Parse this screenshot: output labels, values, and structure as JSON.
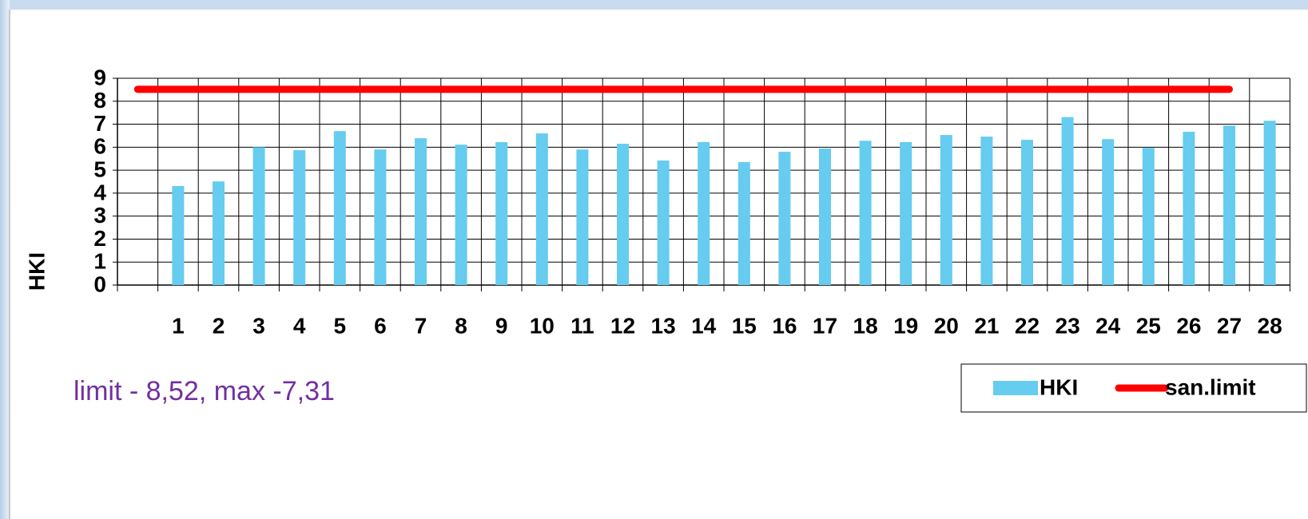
{
  "chart_data": {
    "type": "bar",
    "categories": [
      null,
      "1",
      "2",
      "3",
      "4",
      "5",
      "6",
      "7",
      "8",
      "9",
      "10",
      "11",
      "12",
      "13",
      "14",
      "15",
      "16",
      "17",
      "18",
      "19",
      "20",
      "21",
      "22",
      "23",
      "24",
      "25",
      "26",
      "27",
      "28"
    ],
    "series": [
      {
        "name": "HKI",
        "type": "bar",
        "color": "#66ccf0",
        "values": [
          null,
          4.31,
          4.51,
          6.0,
          5.87,
          6.7,
          5.9,
          6.39,
          6.11,
          6.22,
          6.6,
          5.9,
          6.15,
          5.42,
          6.22,
          5.35,
          5.8,
          5.94,
          6.28,
          6.22,
          6.53,
          6.46,
          6.32,
          7.31,
          6.35,
          5.97,
          6.67,
          6.94,
          7.15
        ]
      },
      {
        "name": "san.limit",
        "type": "line",
        "color": "#ff0000",
        "values": [
          8.52,
          8.52,
          8.52,
          8.52,
          8.52,
          8.52,
          8.52,
          8.52,
          8.52,
          8.52,
          8.52,
          8.52,
          8.52,
          8.52,
          8.52,
          8.52,
          8.52,
          8.52,
          8.52,
          8.52,
          8.52,
          8.52,
          8.52,
          8.52,
          8.52,
          8.52,
          8.52,
          8.52,
          null
        ]
      }
    ],
    "ylabel": "HKI",
    "ylim": [
      0,
      9
    ],
    "yticks": [
      0,
      1,
      2,
      3,
      4,
      5,
      6,
      7,
      8,
      9
    ],
    "grid": true,
    "legend": "bottom-right",
    "annotation": "limit - 8,52, max -7,31"
  }
}
